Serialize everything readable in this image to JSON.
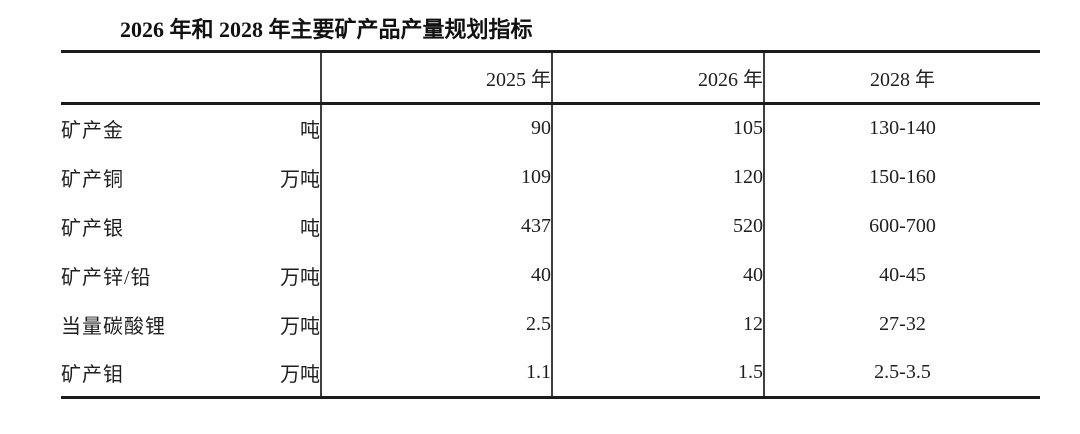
{
  "page": {
    "title": "2026 年和 2028 年主要矿产品产量规划指标",
    "background": "#ffffff"
  },
  "table": {
    "year_headers": [
      "2025 年",
      "2026 年",
      "2028 年"
    ],
    "rows": [
      {
        "item": "矿产金",
        "unit": "吨",
        "y2025": "90",
        "y2026": "105",
        "y2028": "130-140"
      },
      {
        "item": "矿产铜",
        "unit": "万吨",
        "y2025": "109",
        "y2026": "120",
        "y2028": "150-160"
      },
      {
        "item": "矿产银",
        "unit": "吨",
        "y2025": "437",
        "y2026": "520",
        "y2028": "600-700"
      },
      {
        "item": "矿产锌/铅",
        "unit": "万吨",
        "y2025": "40",
        "y2026": "40",
        "y2028": "40-45"
      },
      {
        "item": "当量碳酸锂",
        "unit": "万吨",
        "y2025": "2.5",
        "y2026": "12",
        "y2028": "27-32"
      },
      {
        "item": "矿产钼",
        "unit": "万吨",
        "y2025": "1.1",
        "y2026": "1.5",
        "y2028": "2.5-3.5"
      }
    ],
    "colors": {
      "text": "#1f1f1f",
      "heavy_border": "#1b1b1b",
      "light_border": "#3f3f3f",
      "background": "#ffffff"
    }
  },
  "chart_data": {
    "type": "table",
    "title": "2026 年和 2028 年主要矿产品产量规划指标",
    "columns": [
      "",
      "",
      "2025 年",
      "2026 年",
      "2028 年"
    ],
    "rows": [
      [
        "矿产金",
        "吨",
        "90",
        "105",
        "130-140"
      ],
      [
        "矿产铜",
        "万吨",
        "109",
        "120",
        "150-160"
      ],
      [
        "矿产银",
        "吨",
        "437",
        "520",
        "600-700"
      ],
      [
        "矿产锌/铅",
        "万吨",
        "40",
        "40",
        "40-45"
      ],
      [
        "当量碳酸锂",
        "万吨",
        "2.5",
        "12",
        "27-32"
      ],
      [
        "矿产钼",
        "万吨",
        "1.1",
        "1.5",
        "2.5-3.5"
      ]
    ]
  }
}
